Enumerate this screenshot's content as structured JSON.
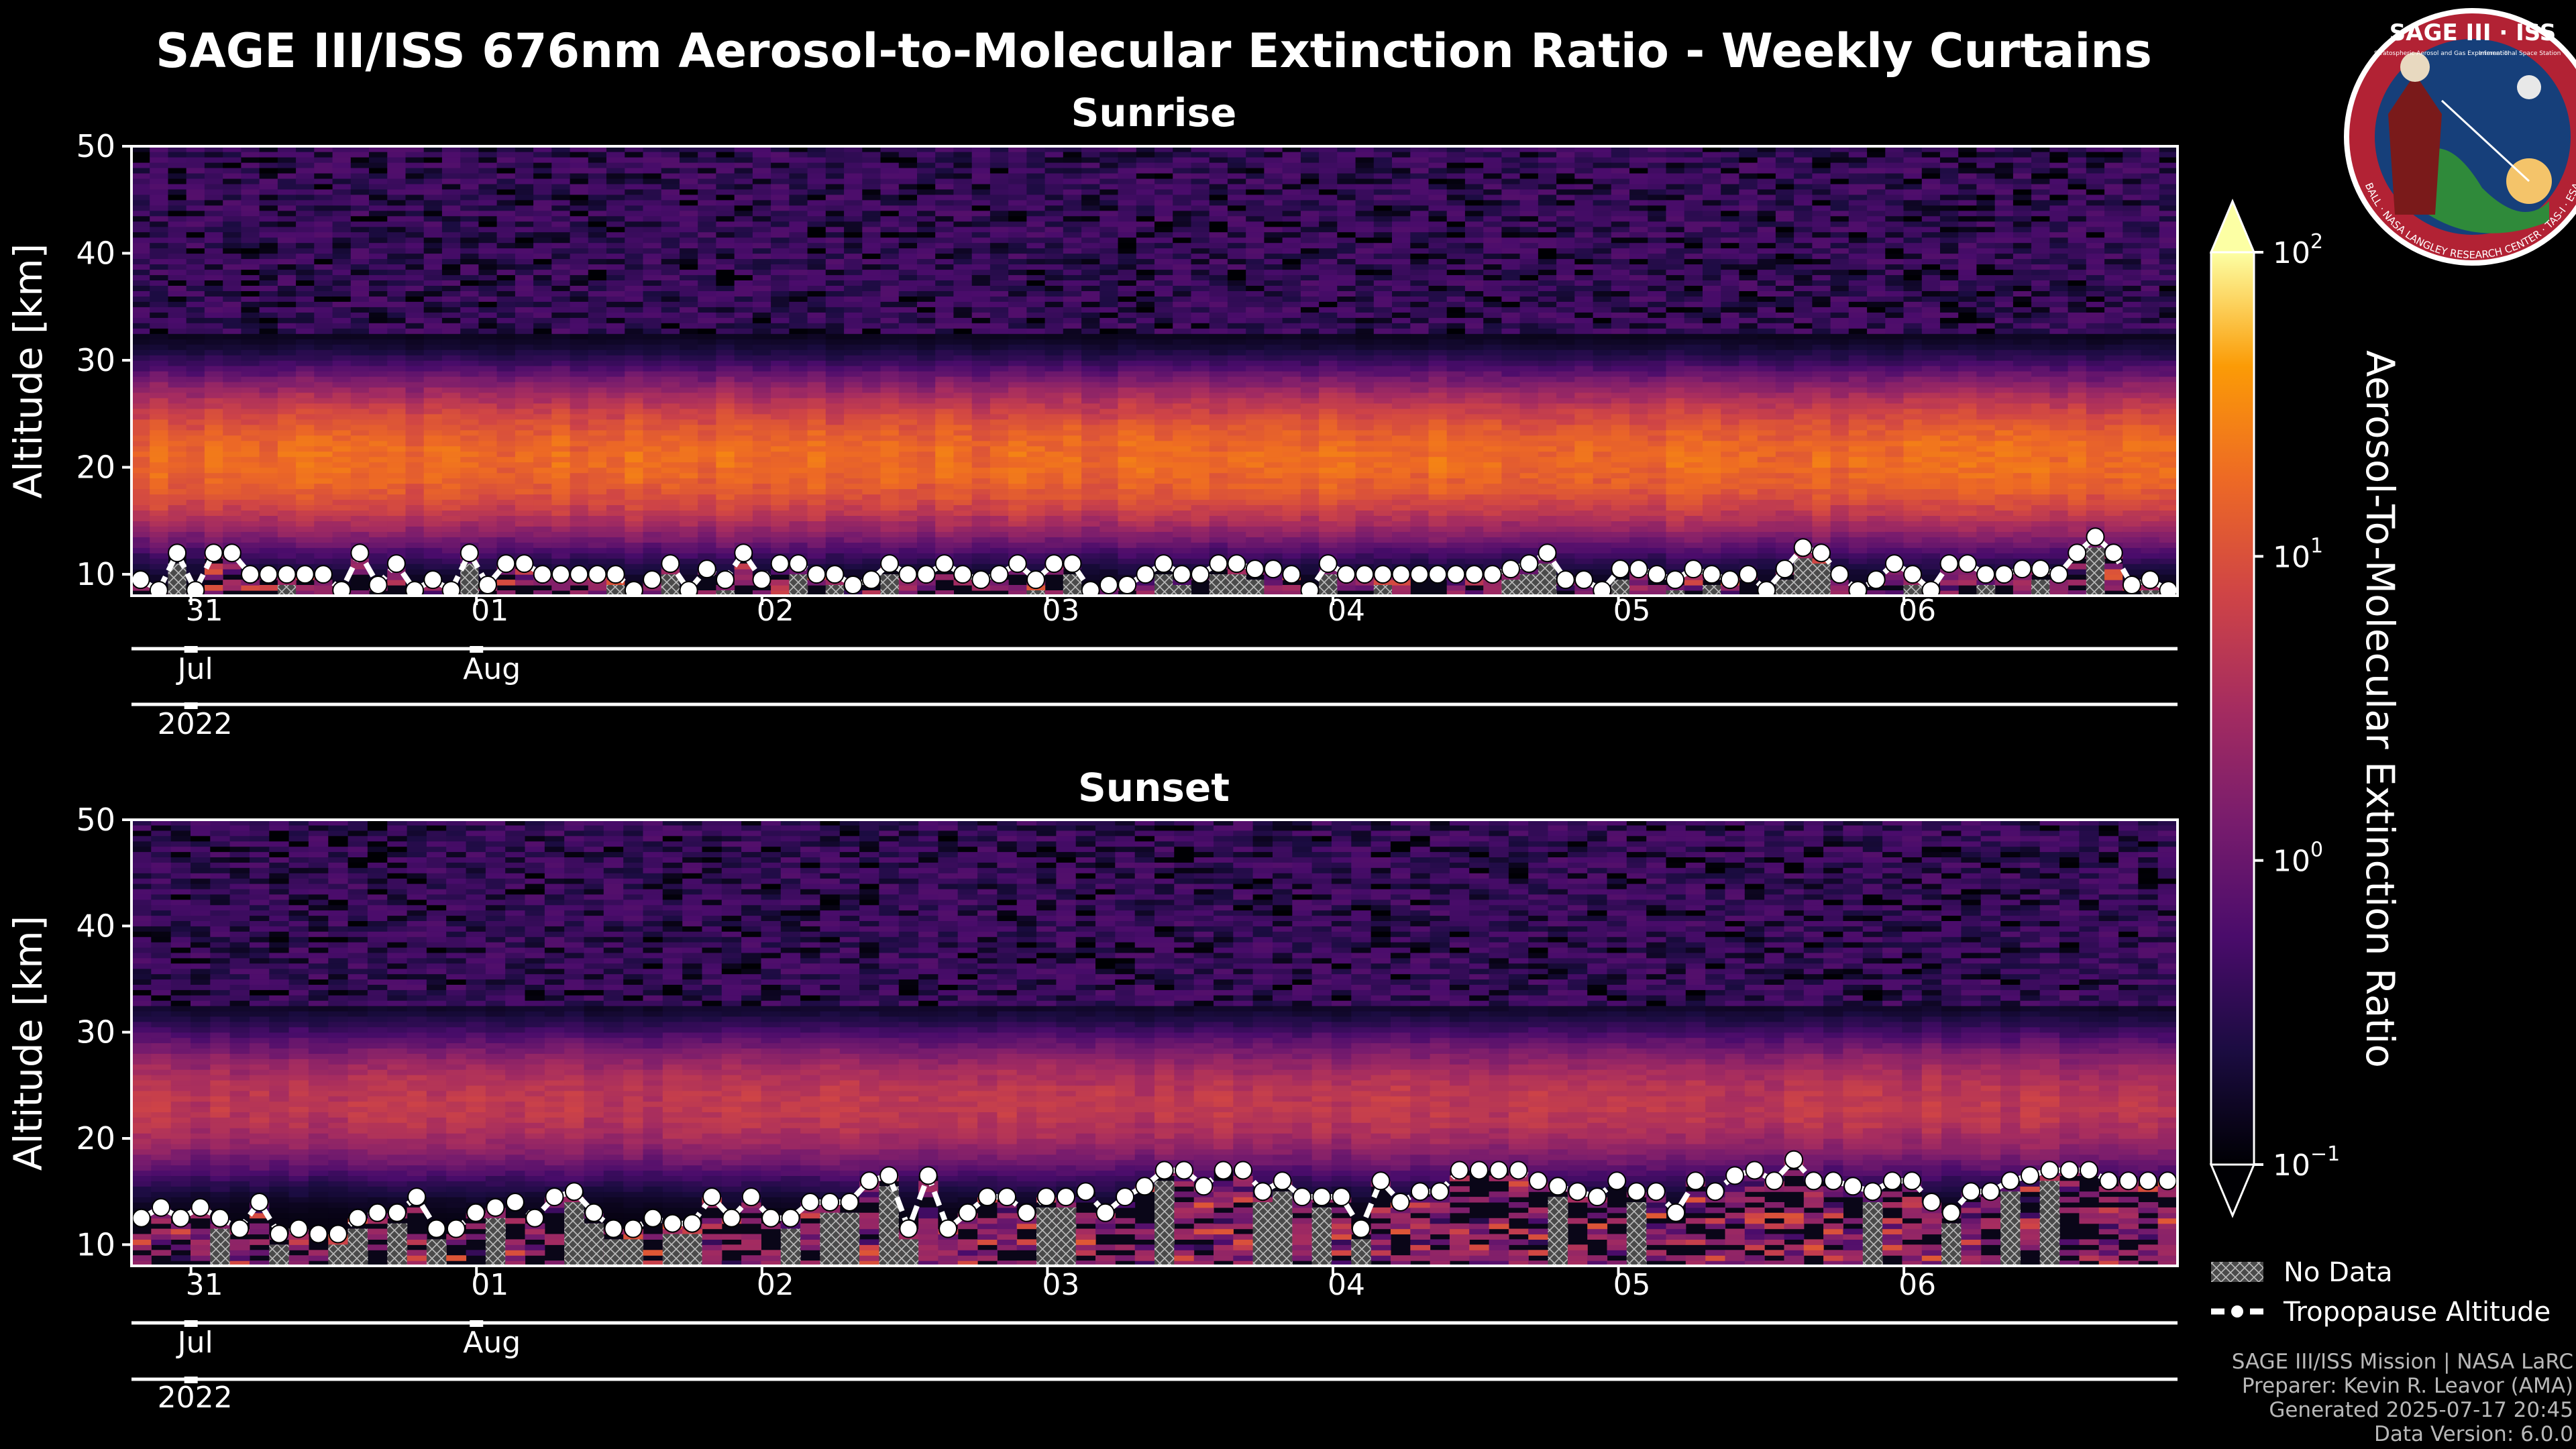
{
  "title": "SAGE III/ISS 676nm Aerosol-to-Molecular Extinction Ratio - Weekly Curtains",
  "logo": {
    "title": "SAGE III · ISS",
    "subtitle": "Stratospheric Aerosol and Gas Experiment III",
    "station": "International Space Station",
    "ring": "BALL · NASA LANGLEY RESEARCH CENTER · TAS-I · ESA"
  },
  "colors": {
    "background": "#000000",
    "tropopause": "#ffffff",
    "hatch": "#9a9a9a"
  },
  "chart_data": [
    {
      "type": "heatmap",
      "title": "Sunrise",
      "ylabel": "Altitude [km]",
      "ylim": [
        8,
        50
      ],
      "yticks": [
        10,
        20,
        30,
        40,
        50
      ],
      "xlim": [
        "2022-07-30T19:00",
        "2022-08-06T23:00"
      ],
      "xticks_day": [
        "31",
        "01",
        "02",
        "03",
        "04",
        "05",
        "06"
      ],
      "xticks_month": [
        "Jul",
        "Aug"
      ],
      "xticks_year": [
        "2022"
      ],
      "aerosol_layer": {
        "center_km": 20.5,
        "top_km": 28,
        "bottom_km": 13,
        "peak_ratio": 18
      },
      "tropopause_km": [
        9.5,
        8.5,
        12,
        8.5,
        12,
        12,
        10,
        10,
        10,
        10,
        10,
        8.5,
        12,
        9,
        11,
        8.5,
        9.5,
        8.5,
        12,
        9,
        11,
        11,
        10,
        10,
        10,
        10,
        10,
        8.5,
        9.5,
        11,
        8.5,
        10.5,
        9.5,
        12,
        9.5,
        11,
        11,
        10,
        10,
        9,
        9.5,
        11,
        10,
        10,
        11,
        10,
        9.5,
        10,
        11,
        9.5,
        11,
        11,
        8.5,
        9,
        9,
        10,
        11,
        10,
        10,
        11,
        11,
        10.5,
        10.5,
        10,
        8.5,
        11,
        10,
        10,
        10,
        10,
        10,
        10,
        10,
        10,
        10,
        10.5,
        11,
        12,
        9.5,
        9.5,
        8.5,
        10.5,
        10.5,
        10,
        9.5,
        10.5,
        10,
        9.5,
        10,
        8.5,
        10.5,
        12.5,
        12,
        10,
        8.5,
        9.5,
        11,
        10,
        8.5,
        11,
        11,
        10,
        10,
        10.5,
        10.5,
        10,
        12,
        13.5,
        12,
        9,
        9.5,
        8.5
      ]
    },
    {
      "type": "heatmap",
      "title": "Sunset",
      "ylabel": "Altitude [km]",
      "ylim": [
        8,
        50
      ],
      "yticks": [
        10,
        20,
        30,
        40,
        50
      ],
      "xlim": [
        "2022-07-30T19:00",
        "2022-08-06T23:00"
      ],
      "xticks_day": [
        "31",
        "01",
        "02",
        "03",
        "04",
        "05",
        "06"
      ],
      "xticks_month": [
        "Jul",
        "Aug"
      ],
      "xticks_year": [
        "2022"
      ],
      "aerosol_layer": {
        "center_km": 23,
        "top_km": 30,
        "bottom_km": 16,
        "peak_ratio": 5
      },
      "tropopause_km": [
        12.5,
        13.5,
        12.5,
        13.5,
        12.5,
        11.5,
        14,
        11,
        11.5,
        11,
        11,
        12.5,
        13,
        13,
        14.5,
        11.5,
        11.5,
        13,
        13.5,
        14,
        12.5,
        14.5,
        15,
        13,
        11.5,
        11.5,
        12.5,
        12,
        12,
        14.5,
        12.5,
        14.5,
        12.5,
        12.5,
        14,
        14,
        14,
        16,
        16.5,
        11.5,
        16.5,
        11.5,
        13,
        14.5,
        14.5,
        13,
        14.5,
        14.5,
        15,
        13,
        14.5,
        15.5,
        17,
        17,
        15.5,
        17,
        17,
        15,
        16,
        14.5,
        14.5,
        14.5,
        11.5,
        16,
        14,
        15,
        15,
        17,
        17,
        17,
        17,
        16,
        15.5,
        15,
        14.5,
        16,
        15,
        15,
        13,
        16,
        15,
        16.5,
        17,
        16,
        18,
        16,
        16,
        15.5,
        15,
        16,
        16,
        14,
        13,
        15,
        15,
        16,
        16.5,
        17,
        17,
        17,
        16,
        16,
        16,
        16
      ]
    }
  ],
  "colorbar": {
    "label": "Aerosol-To-Molecular Extinction Ratio",
    "scale": "log",
    "range": [
      0.1,
      100
    ],
    "tick_labels": [
      {
        "base": "10",
        "exp": "2"
      },
      {
        "base": "10",
        "exp": "1"
      },
      {
        "base": "10",
        "exp": "0"
      },
      {
        "base": "10",
        "exp": "−1"
      }
    ]
  },
  "legend": {
    "no_data": "No Data",
    "tropopause": "Tropopause Altitude"
  },
  "footer": {
    "line1": "SAGE III/ISS Mission | NASA LaRC",
    "line2": "Preparer: Kevin R. Leavor (AMA)",
    "line3": "Generated 2025-07-17 20:45",
    "line4": "Data Version: 6.0.0"
  }
}
